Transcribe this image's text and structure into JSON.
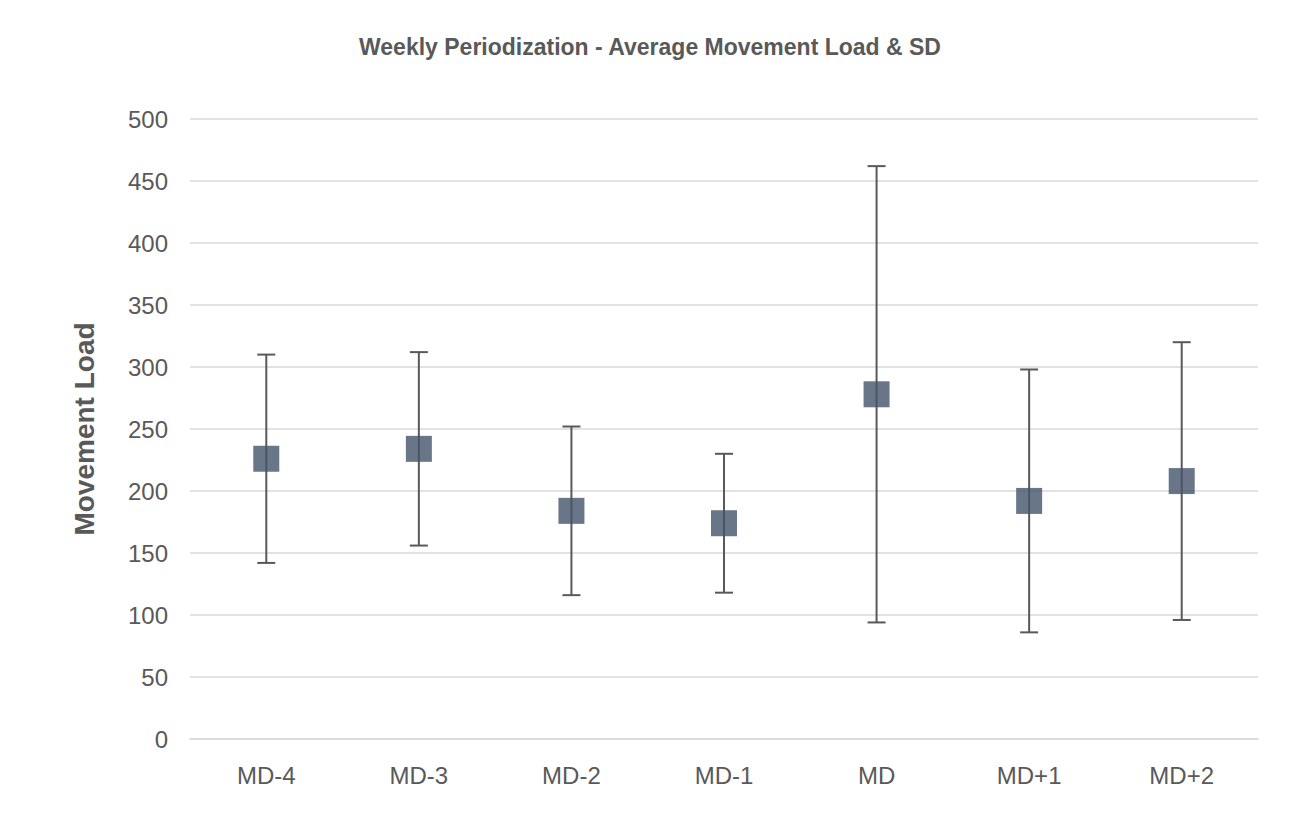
{
  "chart_data": {
    "type": "scatter",
    "title": "Weekly Periodization - Average Movement Load & SD",
    "y_label": "Movement Load",
    "categories": [
      "MD-4",
      "MD-3",
      "MD-2",
      "MD-1",
      "MD",
      "MD+1",
      "MD+2"
    ],
    "values": [
      226,
      234,
      184,
      174,
      278,
      192,
      208
    ],
    "errors": [
      84,
      78,
      68,
      56,
      184,
      106,
      112
    ],
    "color": "#44546a",
    "marker": "square",
    "ylim": [
      0,
      500
    ],
    "yticks": [
      0,
      50,
      100,
      150,
      200,
      250,
      300,
      350,
      400,
      450,
      500
    ],
    "grid": true
  }
}
